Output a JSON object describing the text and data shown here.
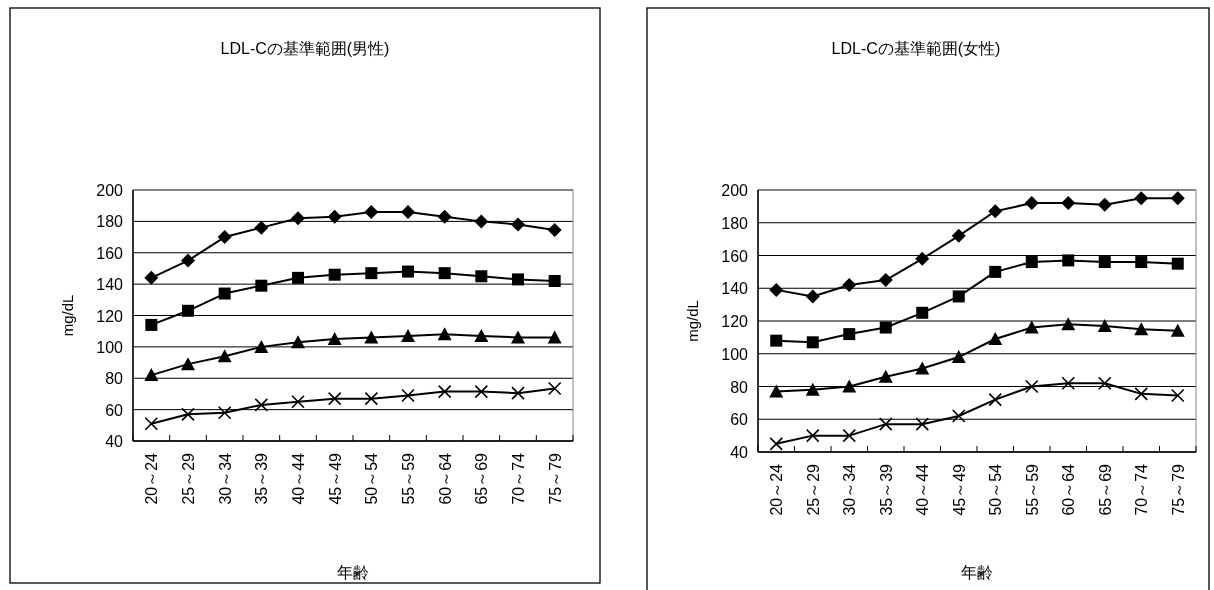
{
  "chart_data": [
    {
      "type": "line",
      "title": "LDL-Cの基準範囲(男性)",
      "xlabel": "年齢",
      "ylabel": "mg/dL",
      "categories": [
        "20～24",
        "25～29",
        "30～34",
        "35～39",
        "40～44",
        "45～49",
        "50～54",
        "55～59",
        "60～64",
        "65～69",
        "70～74",
        "75～79"
      ],
      "ylim": [
        40,
        200
      ],
      "yticks": [
        40,
        60,
        80,
        100,
        120,
        140,
        160,
        180,
        200
      ],
      "grid": "y",
      "series": [
        {
          "color": "#000000",
          "marker": "diamond",
          "values": [
            144,
            155,
            170,
            176,
            182,
            183,
            186,
            186,
            183,
            180,
            178,
            174.5
          ]
        },
        {
          "color": "#000000",
          "marker": "square",
          "values": [
            114,
            123,
            134,
            139,
            144,
            146,
            147,
            148,
            147,
            145,
            143,
            142
          ]
        },
        {
          "color": "#000000",
          "marker": "triangle",
          "values": [
            82,
            89,
            94,
            100,
            103,
            105,
            106,
            107,
            108,
            107,
            106,
            106
          ]
        },
        {
          "color": "#000000",
          "marker": "cross",
          "values": [
            51,
            57,
            58,
            63,
            65,
            67,
            67,
            69,
            71.5,
            71.5,
            70.5,
            73.5
          ]
        }
      ]
    },
    {
      "type": "line",
      "title": "LDL-Cの基準範囲(女性)",
      "xlabel": "年齢",
      "ylabel": "mg/dL",
      "categories": [
        "20～24",
        "25～29",
        "30～34",
        "35～39",
        "40～44",
        "45～49",
        "50～54",
        "55～59",
        "60～64",
        "65～69",
        "70～74",
        "75～79"
      ],
      "ylim": [
        40,
        200
      ],
      "yticks": [
        40,
        60,
        80,
        100,
        120,
        140,
        160,
        180,
        200
      ],
      "grid": "y",
      "series": [
        {
          "color": "#000000",
          "marker": "diamond",
          "values": [
            139,
            135,
            142,
            145,
            158,
            172,
            187,
            192,
            192,
            191,
            195,
            195
          ]
        },
        {
          "color": "#000000",
          "marker": "square",
          "values": [
            108,
            107,
            112,
            116,
            125,
            135,
            150,
            156,
            157,
            156,
            156,
            155
          ]
        },
        {
          "color": "#000000",
          "marker": "triangle",
          "values": [
            77,
            78,
            80,
            86,
            91,
            98,
            109,
            116,
            118,
            117,
            115,
            114
          ]
        },
        {
          "color": "#000000",
          "marker": "cross",
          "values": [
            45,
            50,
            50,
            57,
            57,
            62,
            72,
            80,
            82,
            82,
            75.5,
            74.5
          ]
        }
      ]
    }
  ]
}
